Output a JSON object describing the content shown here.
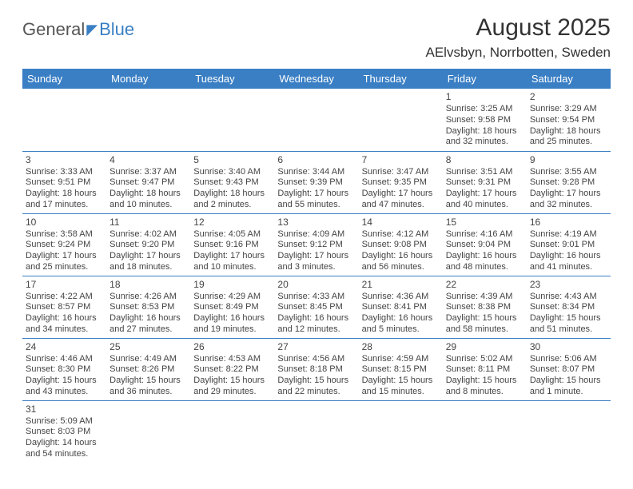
{
  "branding": {
    "logo_general": "General",
    "logo_blue": "Blue"
  },
  "header": {
    "month_title": "August 2025",
    "location": "AElvsbyn, Norrbotten, Sweden"
  },
  "colors": {
    "header_bg": "#3a7fc4",
    "header_text": "#ffffff",
    "cell_border": "#3a7fc4",
    "body_text": "#444444",
    "page_bg": "#ffffff"
  },
  "typography": {
    "title_fontsize": 30,
    "location_fontsize": 17,
    "weekday_fontsize": 13,
    "cell_fontsize": 11,
    "font_family": "Arial"
  },
  "weekdays": [
    "Sunday",
    "Monday",
    "Tuesday",
    "Wednesday",
    "Thursday",
    "Friday",
    "Saturday"
  ],
  "weeks": [
    [
      null,
      null,
      null,
      null,
      null,
      {
        "day": "1",
        "sunrise": "Sunrise: 3:25 AM",
        "sunset": "Sunset: 9:58 PM",
        "dl1": "Daylight: 18 hours",
        "dl2": "and 32 minutes."
      },
      {
        "day": "2",
        "sunrise": "Sunrise: 3:29 AM",
        "sunset": "Sunset: 9:54 PM",
        "dl1": "Daylight: 18 hours",
        "dl2": "and 25 minutes."
      }
    ],
    [
      {
        "day": "3",
        "sunrise": "Sunrise: 3:33 AM",
        "sunset": "Sunset: 9:51 PM",
        "dl1": "Daylight: 18 hours",
        "dl2": "and 17 minutes."
      },
      {
        "day": "4",
        "sunrise": "Sunrise: 3:37 AM",
        "sunset": "Sunset: 9:47 PM",
        "dl1": "Daylight: 18 hours",
        "dl2": "and 10 minutes."
      },
      {
        "day": "5",
        "sunrise": "Sunrise: 3:40 AM",
        "sunset": "Sunset: 9:43 PM",
        "dl1": "Daylight: 18 hours",
        "dl2": "and 2 minutes."
      },
      {
        "day": "6",
        "sunrise": "Sunrise: 3:44 AM",
        "sunset": "Sunset: 9:39 PM",
        "dl1": "Daylight: 17 hours",
        "dl2": "and 55 minutes."
      },
      {
        "day": "7",
        "sunrise": "Sunrise: 3:47 AM",
        "sunset": "Sunset: 9:35 PM",
        "dl1": "Daylight: 17 hours",
        "dl2": "and 47 minutes."
      },
      {
        "day": "8",
        "sunrise": "Sunrise: 3:51 AM",
        "sunset": "Sunset: 9:31 PM",
        "dl1": "Daylight: 17 hours",
        "dl2": "and 40 minutes."
      },
      {
        "day": "9",
        "sunrise": "Sunrise: 3:55 AM",
        "sunset": "Sunset: 9:28 PM",
        "dl1": "Daylight: 17 hours",
        "dl2": "and 32 minutes."
      }
    ],
    [
      {
        "day": "10",
        "sunrise": "Sunrise: 3:58 AM",
        "sunset": "Sunset: 9:24 PM",
        "dl1": "Daylight: 17 hours",
        "dl2": "and 25 minutes."
      },
      {
        "day": "11",
        "sunrise": "Sunrise: 4:02 AM",
        "sunset": "Sunset: 9:20 PM",
        "dl1": "Daylight: 17 hours",
        "dl2": "and 18 minutes."
      },
      {
        "day": "12",
        "sunrise": "Sunrise: 4:05 AM",
        "sunset": "Sunset: 9:16 PM",
        "dl1": "Daylight: 17 hours",
        "dl2": "and 10 minutes."
      },
      {
        "day": "13",
        "sunrise": "Sunrise: 4:09 AM",
        "sunset": "Sunset: 9:12 PM",
        "dl1": "Daylight: 17 hours",
        "dl2": "and 3 minutes."
      },
      {
        "day": "14",
        "sunrise": "Sunrise: 4:12 AM",
        "sunset": "Sunset: 9:08 PM",
        "dl1": "Daylight: 16 hours",
        "dl2": "and 56 minutes."
      },
      {
        "day": "15",
        "sunrise": "Sunrise: 4:16 AM",
        "sunset": "Sunset: 9:04 PM",
        "dl1": "Daylight: 16 hours",
        "dl2": "and 48 minutes."
      },
      {
        "day": "16",
        "sunrise": "Sunrise: 4:19 AM",
        "sunset": "Sunset: 9:01 PM",
        "dl1": "Daylight: 16 hours",
        "dl2": "and 41 minutes."
      }
    ],
    [
      {
        "day": "17",
        "sunrise": "Sunrise: 4:22 AM",
        "sunset": "Sunset: 8:57 PM",
        "dl1": "Daylight: 16 hours",
        "dl2": "and 34 minutes."
      },
      {
        "day": "18",
        "sunrise": "Sunrise: 4:26 AM",
        "sunset": "Sunset: 8:53 PM",
        "dl1": "Daylight: 16 hours",
        "dl2": "and 27 minutes."
      },
      {
        "day": "19",
        "sunrise": "Sunrise: 4:29 AM",
        "sunset": "Sunset: 8:49 PM",
        "dl1": "Daylight: 16 hours",
        "dl2": "and 19 minutes."
      },
      {
        "day": "20",
        "sunrise": "Sunrise: 4:33 AM",
        "sunset": "Sunset: 8:45 PM",
        "dl1": "Daylight: 16 hours",
        "dl2": "and 12 minutes."
      },
      {
        "day": "21",
        "sunrise": "Sunrise: 4:36 AM",
        "sunset": "Sunset: 8:41 PM",
        "dl1": "Daylight: 16 hours",
        "dl2": "and 5 minutes."
      },
      {
        "day": "22",
        "sunrise": "Sunrise: 4:39 AM",
        "sunset": "Sunset: 8:38 PM",
        "dl1": "Daylight: 15 hours",
        "dl2": "and 58 minutes."
      },
      {
        "day": "23",
        "sunrise": "Sunrise: 4:43 AM",
        "sunset": "Sunset: 8:34 PM",
        "dl1": "Daylight: 15 hours",
        "dl2": "and 51 minutes."
      }
    ],
    [
      {
        "day": "24",
        "sunrise": "Sunrise: 4:46 AM",
        "sunset": "Sunset: 8:30 PM",
        "dl1": "Daylight: 15 hours",
        "dl2": "and 43 minutes."
      },
      {
        "day": "25",
        "sunrise": "Sunrise: 4:49 AM",
        "sunset": "Sunset: 8:26 PM",
        "dl1": "Daylight: 15 hours",
        "dl2": "and 36 minutes."
      },
      {
        "day": "26",
        "sunrise": "Sunrise: 4:53 AM",
        "sunset": "Sunset: 8:22 PM",
        "dl1": "Daylight: 15 hours",
        "dl2": "and 29 minutes."
      },
      {
        "day": "27",
        "sunrise": "Sunrise: 4:56 AM",
        "sunset": "Sunset: 8:18 PM",
        "dl1": "Daylight: 15 hours",
        "dl2": "and 22 minutes."
      },
      {
        "day": "28",
        "sunrise": "Sunrise: 4:59 AM",
        "sunset": "Sunset: 8:15 PM",
        "dl1": "Daylight: 15 hours",
        "dl2": "and 15 minutes."
      },
      {
        "day": "29",
        "sunrise": "Sunrise: 5:02 AM",
        "sunset": "Sunset: 8:11 PM",
        "dl1": "Daylight: 15 hours",
        "dl2": "and 8 minutes."
      },
      {
        "day": "30",
        "sunrise": "Sunrise: 5:06 AM",
        "sunset": "Sunset: 8:07 PM",
        "dl1": "Daylight: 15 hours",
        "dl2": "and 1 minute."
      }
    ],
    [
      {
        "day": "31",
        "sunrise": "Sunrise: 5:09 AM",
        "sunset": "Sunset: 8:03 PM",
        "dl1": "Daylight: 14 hours",
        "dl2": "and 54 minutes."
      },
      null,
      null,
      null,
      null,
      null,
      null
    ]
  ]
}
